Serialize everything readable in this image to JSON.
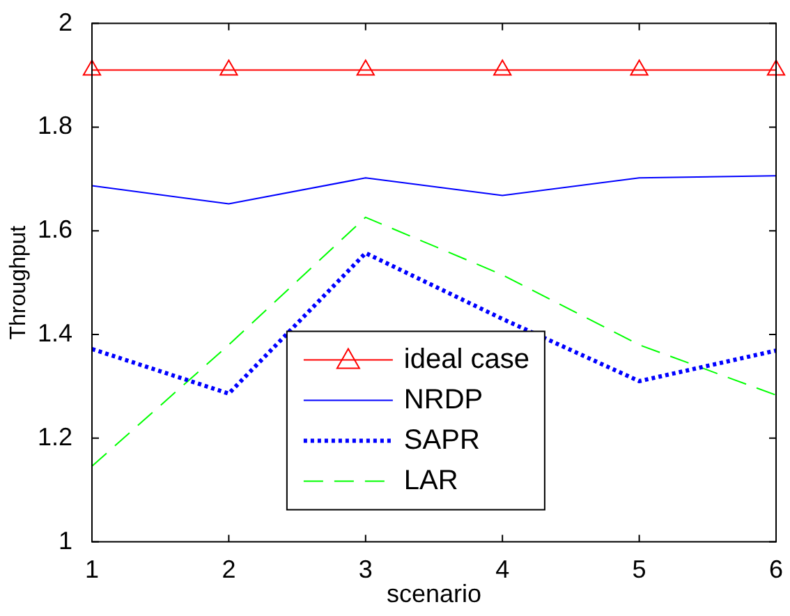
{
  "chart_data": {
    "type": "line",
    "xlabel": "scenario",
    "ylabel": "Throughput",
    "x": [
      1,
      2,
      3,
      4,
      5,
      6
    ],
    "xlim": [
      1,
      6
    ],
    "xticks": [
      1,
      2,
      3,
      4,
      5,
      6
    ],
    "ylim": [
      1,
      2
    ],
    "yticks": [
      1,
      1.2,
      1.4,
      1.6,
      1.8,
      2
    ],
    "grid": false,
    "legend": "bottom",
    "series": [
      {
        "name": "ideal case",
        "color": "#ff0000",
        "marker": "triangle",
        "line_style": "solid",
        "values": [
          1.91,
          1.91,
          1.91,
          1.91,
          1.91,
          1.91
        ]
      },
      {
        "name": "NRDP",
        "color": "#0000ff",
        "line_style": "solid",
        "values": [
          1.687,
          1.652,
          1.702,
          1.668,
          1.702,
          1.706
        ]
      },
      {
        "name": "SAPR",
        "color": "#0000ff",
        "line_style": "dotted",
        "values": [
          1.372,
          1.286,
          1.557,
          1.43,
          1.31,
          1.369
        ]
      },
      {
        "name": "LAR",
        "color": "#00ff00",
        "line_style": "dashed",
        "values": [
          1.146,
          1.38,
          1.626,
          1.515,
          1.38,
          1.283
        ]
      }
    ]
  }
}
